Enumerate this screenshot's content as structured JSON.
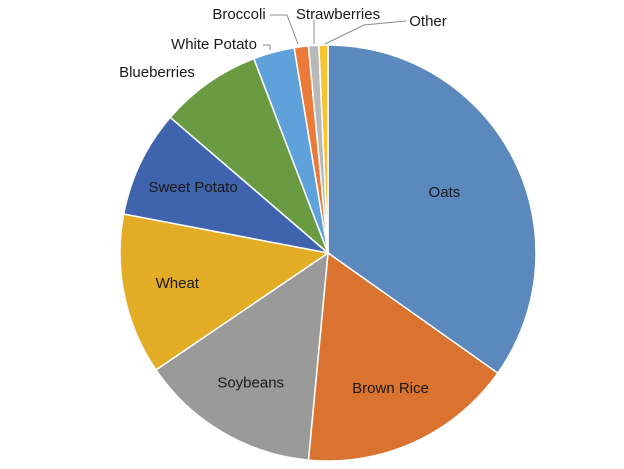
{
  "chart_data": {
    "type": "pie",
    "title": "",
    "start_angle_deg": 0,
    "direction": "clockwise",
    "legend": "none",
    "slices": [
      {
        "label": "Oats",
        "value": 34.8,
        "color": "#5b89bd"
      },
      {
        "label": "Brown Rice",
        "value": 16.7,
        "color": "#d9732f"
      },
      {
        "label": "Soybeans",
        "value": 14.0,
        "color": "#9a9a9a"
      },
      {
        "label": "Wheat",
        "value": 12.5,
        "color": "#e2ac24"
      },
      {
        "label": "Sweet Potato",
        "value": 8.3,
        "color": "#3f63ad"
      },
      {
        "label": "Blueberries",
        "value": 7.9,
        "color": "#6a9a42"
      },
      {
        "label": "White Potato",
        "value": 3.2,
        "color": "#5ea1db"
      },
      {
        "label": "Broccoli",
        "value": 1.1,
        "color": "#ec7b3a"
      },
      {
        "label": "Strawberries",
        "value": 0.8,
        "color": "#b8b8b8"
      },
      {
        "label": "Other",
        "value": 0.7,
        "color": "#f5c430"
      }
    ]
  }
}
